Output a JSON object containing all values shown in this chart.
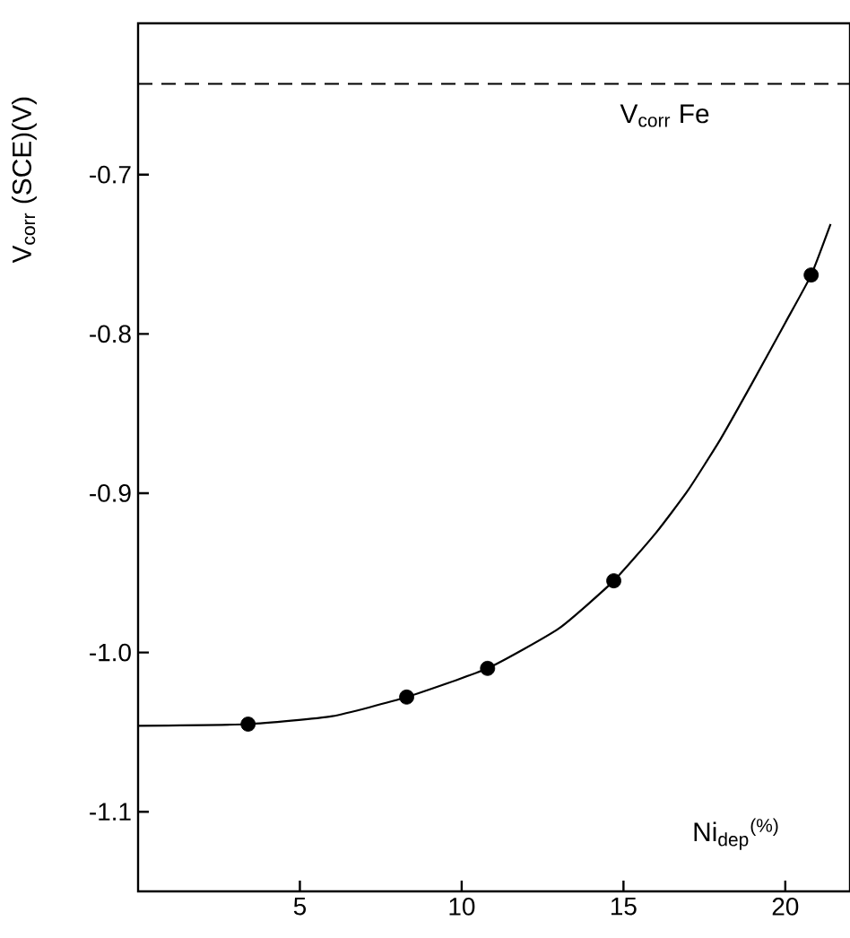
{
  "chart_data": {
    "type": "scatter",
    "xlabel": "Ni$_{dep}$$^{(%)}$",
    "ylabel": "V$_{corr}$ (SCE)(V)",
    "xlim": [
      0,
      22
    ],
    "ylim": [
      -1.15,
      -0.605
    ],
    "xticks": [
      5,
      10,
      15,
      20
    ],
    "yticks": [
      -1.1,
      {
        "value": -1.0,
        "label": "-1.0"
      },
      -0.9,
      -0.8,
      -0.7
    ],
    "ref_lines": [
      {
        "axis": "y",
        "value": -0.643,
        "label": "V$_{corr}$ Fe",
        "line_style": "dashed",
        "color": "#000000"
      }
    ],
    "grid": false,
    "series": [
      {
        "marker": "circle",
        "color": "#000000",
        "x": [
          3.4,
          8.3,
          10.8,
          14.7,
          20.8
        ],
        "values": [
          -1.045,
          -1.028,
          -1.01,
          -0.955,
          -0.763
        ]
      },
      {
        "type": "line",
        "marker": "none",
        "line_style": "solid",
        "color": "#000000",
        "x": [
          0,
          3.4,
          6,
          8.3,
          10.8,
          13,
          14.7,
          16,
          17,
          18,
          19,
          20,
          20.8,
          21.4
        ],
        "values": [
          -1.046,
          -1.045,
          -1.04,
          -1.028,
          -1.01,
          -0.985,
          -0.955,
          -0.925,
          -0.898,
          -0.866,
          -0.83,
          -0.793,
          -0.763,
          -0.731
        ]
      }
    ]
  }
}
